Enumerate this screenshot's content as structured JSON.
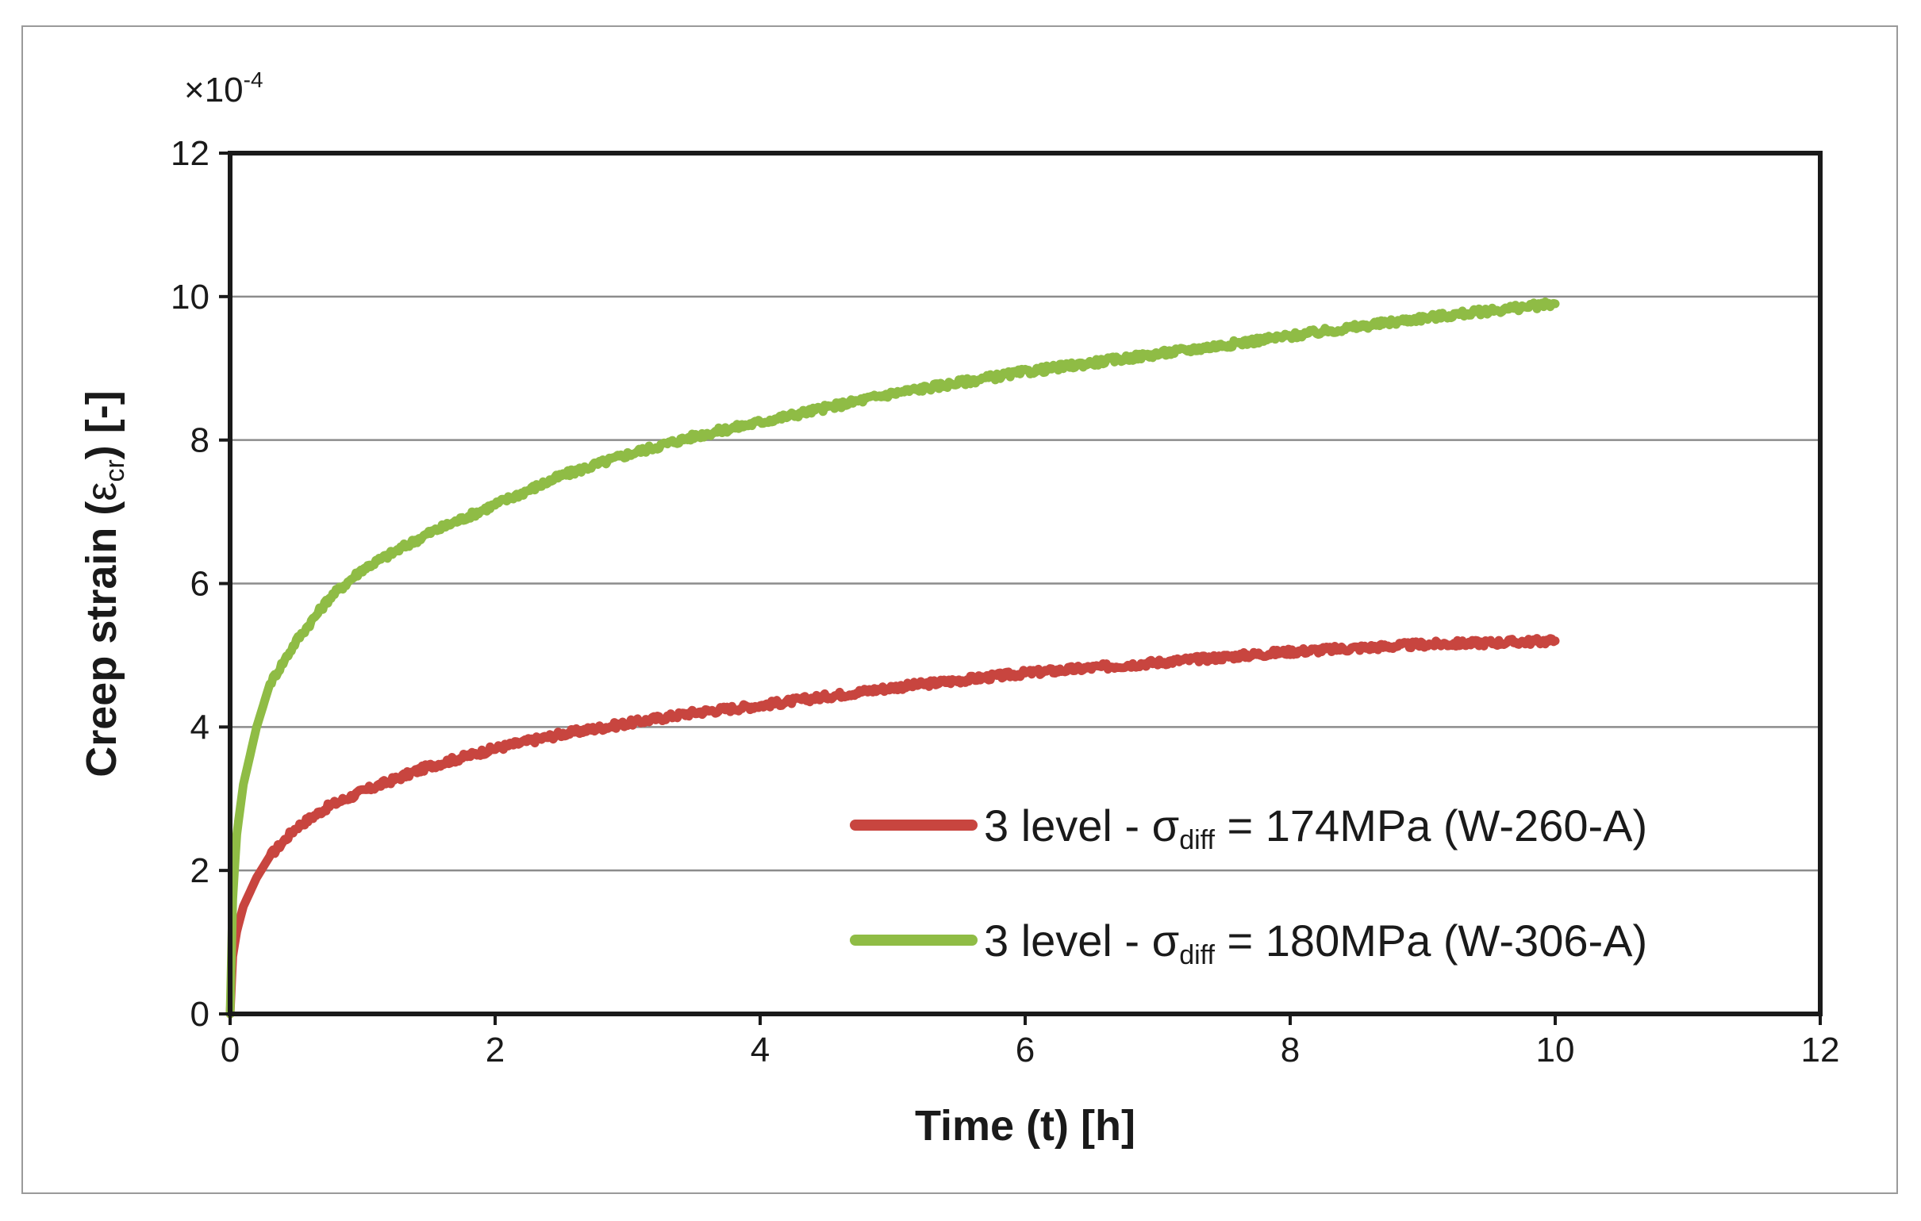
{
  "chart_data": {
    "type": "line",
    "title": "",
    "xlabel": "Time (t) [h]",
    "ylabel": "Creep strain",
    "ylabel_symbol": "ε",
    "ylabel_symbol_sub": "cr",
    "ylabel_unit": "[-]",
    "y_multiplier": "×10",
    "y_multiplier_exp": "-4",
    "xlim": [
      0,
      12
    ],
    "ylim": [
      0,
      12
    ],
    "xticks": [
      0,
      2,
      4,
      6,
      8,
      10,
      12
    ],
    "yticks": [
      0,
      2,
      4,
      6,
      8,
      10,
      12
    ],
    "grid": "horizontal",
    "legend_position": "bottom-right",
    "series": [
      {
        "name": "3 level - σdiff = 174MPa (W-260-A)",
        "label_prefix": "3 level - ",
        "label_sigma": "σ",
        "label_sub": "diff",
        "label_suffix": " = 174MPa (W-260-A)",
        "color": "#c8453f",
        "x": [
          0,
          0.02,
          0.05,
          0.1,
          0.2,
          0.3,
          0.5,
          0.75,
          1,
          1.5,
          2,
          2.5,
          3,
          3.5,
          4,
          5,
          6,
          7,
          8,
          9,
          10
        ],
        "y": [
          0,
          0.8,
          1.15,
          1.5,
          1.9,
          2.2,
          2.6,
          2.9,
          3.1,
          3.45,
          3.7,
          3.9,
          4.05,
          4.2,
          4.3,
          4.55,
          4.75,
          4.9,
          5.05,
          5.15,
          5.2
        ]
      },
      {
        "name": "3 level - σdiff = 180MPa (W-306-A)",
        "label_prefix": "3 level - ",
        "label_sigma": "σ",
        "label_sub": "diff",
        "label_suffix": " = 180MPa (W-306-A)",
        "color": "#8fbc45",
        "x": [
          0,
          0.02,
          0.05,
          0.1,
          0.2,
          0.3,
          0.5,
          0.75,
          1,
          1.5,
          2,
          2.5,
          3,
          3.5,
          4,
          5,
          6,
          7,
          8,
          9,
          10
        ],
        "y": [
          0,
          1.6,
          2.5,
          3.2,
          4.0,
          4.6,
          5.2,
          5.8,
          6.2,
          6.7,
          7.1,
          7.5,
          7.8,
          8.05,
          8.25,
          8.65,
          8.95,
          9.2,
          9.45,
          9.7,
          9.9
        ]
      }
    ]
  }
}
